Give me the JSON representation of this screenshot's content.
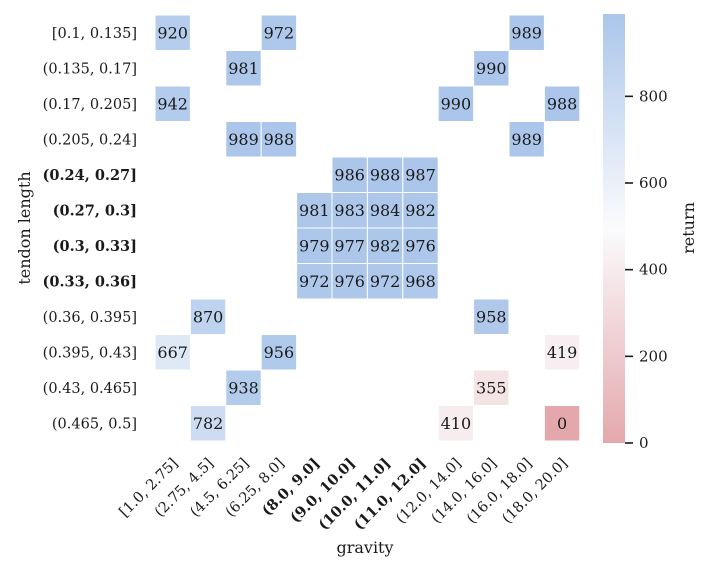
{
  "chart_data": {
    "type": "heatmap",
    "title": "",
    "xlabel": "gravity",
    "ylabel": "tendon length",
    "x_categories": [
      "[1.0, 2.75]",
      "(2.75, 4.5]",
      "(4.5, 6.25]",
      "(6.25, 8.0]",
      "(8.0, 9.0]",
      "(9.0, 10.0]",
      "(10.0, 11.0]",
      "(11.0, 12.0]",
      "(12.0, 14.0]",
      "(14.0, 16.0]",
      "(16.0, 18.0]",
      "(18.0, 20.0]"
    ],
    "x_bold": [
      false,
      false,
      false,
      false,
      true,
      true,
      true,
      true,
      false,
      false,
      false,
      false
    ],
    "y_categories": [
      "[0.1, 0.135]",
      "(0.135, 0.17]",
      "(0.17, 0.205]",
      "(0.205, 0.24]",
      "(0.24, 0.27]",
      "(0.27, 0.3]",
      "(0.3, 0.33]",
      "(0.33, 0.36]",
      "(0.36, 0.395]",
      "(0.395, 0.43]",
      "(0.43, 0.465]",
      "(0.465, 0.5]"
    ],
    "y_bold": [
      false,
      false,
      false,
      false,
      true,
      true,
      true,
      true,
      false,
      false,
      false,
      false
    ],
    "cells": [
      {
        "row": 0,
        "col": 0,
        "value": 920
      },
      {
        "row": 0,
        "col": 3,
        "value": 972
      },
      {
        "row": 0,
        "col": 10,
        "value": 989
      },
      {
        "row": 1,
        "col": 2,
        "value": 981
      },
      {
        "row": 1,
        "col": 9,
        "value": 990
      },
      {
        "row": 2,
        "col": 0,
        "value": 942
      },
      {
        "row": 2,
        "col": 8,
        "value": 990
      },
      {
        "row": 2,
        "col": 11,
        "value": 988
      },
      {
        "row": 3,
        "col": 2,
        "value": 989
      },
      {
        "row": 3,
        "col": 3,
        "value": 988
      },
      {
        "row": 3,
        "col": 10,
        "value": 989
      },
      {
        "row": 4,
        "col": 5,
        "value": 986
      },
      {
        "row": 4,
        "col": 6,
        "value": 988
      },
      {
        "row": 4,
        "col": 7,
        "value": 987
      },
      {
        "row": 5,
        "col": 4,
        "value": 981
      },
      {
        "row": 5,
        "col": 5,
        "value": 983
      },
      {
        "row": 5,
        "col": 6,
        "value": 984
      },
      {
        "row": 5,
        "col": 7,
        "value": 982
      },
      {
        "row": 6,
        "col": 4,
        "value": 979
      },
      {
        "row": 6,
        "col": 5,
        "value": 977
      },
      {
        "row": 6,
        "col": 6,
        "value": 982
      },
      {
        "row": 6,
        "col": 7,
        "value": 976
      },
      {
        "row": 7,
        "col": 4,
        "value": 972
      },
      {
        "row": 7,
        "col": 5,
        "value": 976
      },
      {
        "row": 7,
        "col": 6,
        "value": 972
      },
      {
        "row": 7,
        "col": 7,
        "value": 968
      },
      {
        "row": 8,
        "col": 1,
        "value": 870
      },
      {
        "row": 8,
        "col": 9,
        "value": 958
      },
      {
        "row": 9,
        "col": 0,
        "value": 667
      },
      {
        "row": 9,
        "col": 3,
        "value": 956
      },
      {
        "row": 9,
        "col": 11,
        "value": 419
      },
      {
        "row": 10,
        "col": 2,
        "value": 938
      },
      {
        "row": 10,
        "col": 9,
        "value": 355
      },
      {
        "row": 11,
        "col": 1,
        "value": 782
      },
      {
        "row": 11,
        "col": 8,
        "value": 410
      },
      {
        "row": 11,
        "col": 11,
        "value": 0
      }
    ],
    "colorbar": {
      "label": "return",
      "vmin": 0,
      "vmax": 990,
      "ticks": [
        0,
        200,
        400,
        600,
        800
      ],
      "low_color": "#e4a8ac",
      "mid_color": "#fbfbfd",
      "high_color": "#abc6ea"
    }
  }
}
